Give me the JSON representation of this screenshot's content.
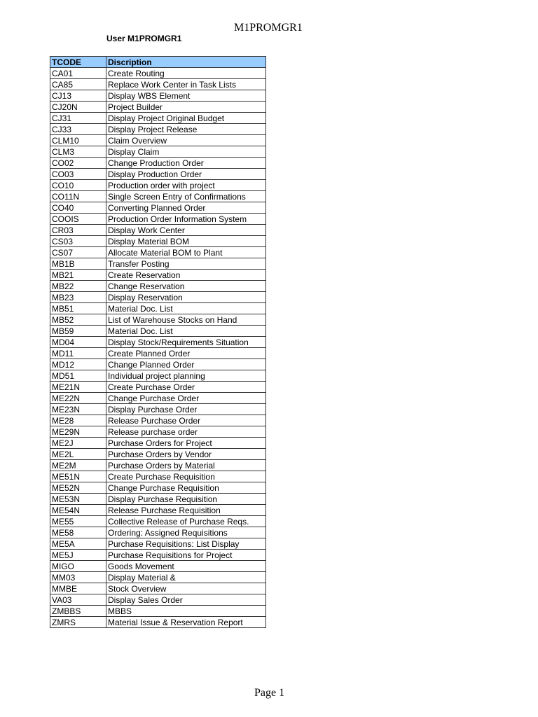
{
  "header": {
    "title": "M1PROMGR1"
  },
  "user_label": "User M1PROMGR1",
  "table": {
    "columns": [
      "TCODE",
      "Discription"
    ],
    "header_color": "#99ccff",
    "rows": [
      [
        "CA01",
        "Create Routing"
      ],
      [
        "CA85",
        "Replace Work Center in Task Lists"
      ],
      [
        "CJ13",
        "Display WBS Element"
      ],
      [
        "CJ20N",
        "Project Builder"
      ],
      [
        "CJ31",
        "Display Project Original Budget"
      ],
      [
        "CJ33",
        "Display Project Release"
      ],
      [
        "CLM10",
        "Claim Overview"
      ],
      [
        "CLM3",
        "Display Claim"
      ],
      [
        "CO02",
        "Change Production Order"
      ],
      [
        "CO03",
        "Display Production Order"
      ],
      [
        "CO10",
        "Production order with project"
      ],
      [
        "CO11N",
        "Single Screen Entry of Confirmations"
      ],
      [
        "CO40",
        "Converting Planned Order"
      ],
      [
        "COOIS",
        "Production Order Information System"
      ],
      [
        "CR03",
        "Display Work Center"
      ],
      [
        "CS03",
        "Display Material BOM"
      ],
      [
        "CS07",
        "Allocate Material BOM to Plant"
      ],
      [
        "MB1B",
        "Transfer Posting"
      ],
      [
        "MB21",
        "Create Reservation"
      ],
      [
        "MB22",
        "Change Reservation"
      ],
      [
        "MB23",
        "Display Reservation"
      ],
      [
        "MB51",
        "Material Doc. List"
      ],
      [
        "MB52",
        "List of Warehouse Stocks on Hand"
      ],
      [
        "MB59",
        "Material Doc. List"
      ],
      [
        "MD04",
        "Display Stock/Requirements Situation"
      ],
      [
        "MD11",
        "Create Planned Order"
      ],
      [
        "MD12",
        "Change Planned Order"
      ],
      [
        "MD51",
        "Individual project planning"
      ],
      [
        "ME21N",
        "Create Purchase Order"
      ],
      [
        "ME22N",
        "Change Purchase Order"
      ],
      [
        "ME23N",
        "Display Purchase Order"
      ],
      [
        "ME28",
        "Release Purchase Order"
      ],
      [
        "ME29N",
        "Release purchase order"
      ],
      [
        "ME2J",
        "Purchase Orders for Project"
      ],
      [
        "ME2L",
        "Purchase Orders by Vendor"
      ],
      [
        "ME2M",
        "Purchase Orders by Material"
      ],
      [
        "ME51N",
        "Create Purchase Requisition"
      ],
      [
        "ME52N",
        "Change Purchase Requisition"
      ],
      [
        "ME53N",
        "Display Purchase Requisition"
      ],
      [
        "ME54N",
        "Release Purchase Requisition"
      ],
      [
        "ME55",
        "Collective Release of Purchase Reqs."
      ],
      [
        "ME58",
        "Ordering: Assigned Requisitions"
      ],
      [
        "ME5A",
        "Purchase Requisitions: List Display"
      ],
      [
        "ME5J",
        "Purchase Requisitions for Project"
      ],
      [
        "MIGO",
        "Goods Movement"
      ],
      [
        "MM03",
        "Display Material &"
      ],
      [
        "MMBE",
        "Stock Overview"
      ],
      [
        "VA03",
        "Display Sales Order"
      ],
      [
        "ZMBBS",
        "MBBS"
      ],
      [
        "ZMRS",
        "Material Issue & Reservation Report"
      ]
    ]
  },
  "footer": {
    "page": "Page 1"
  }
}
